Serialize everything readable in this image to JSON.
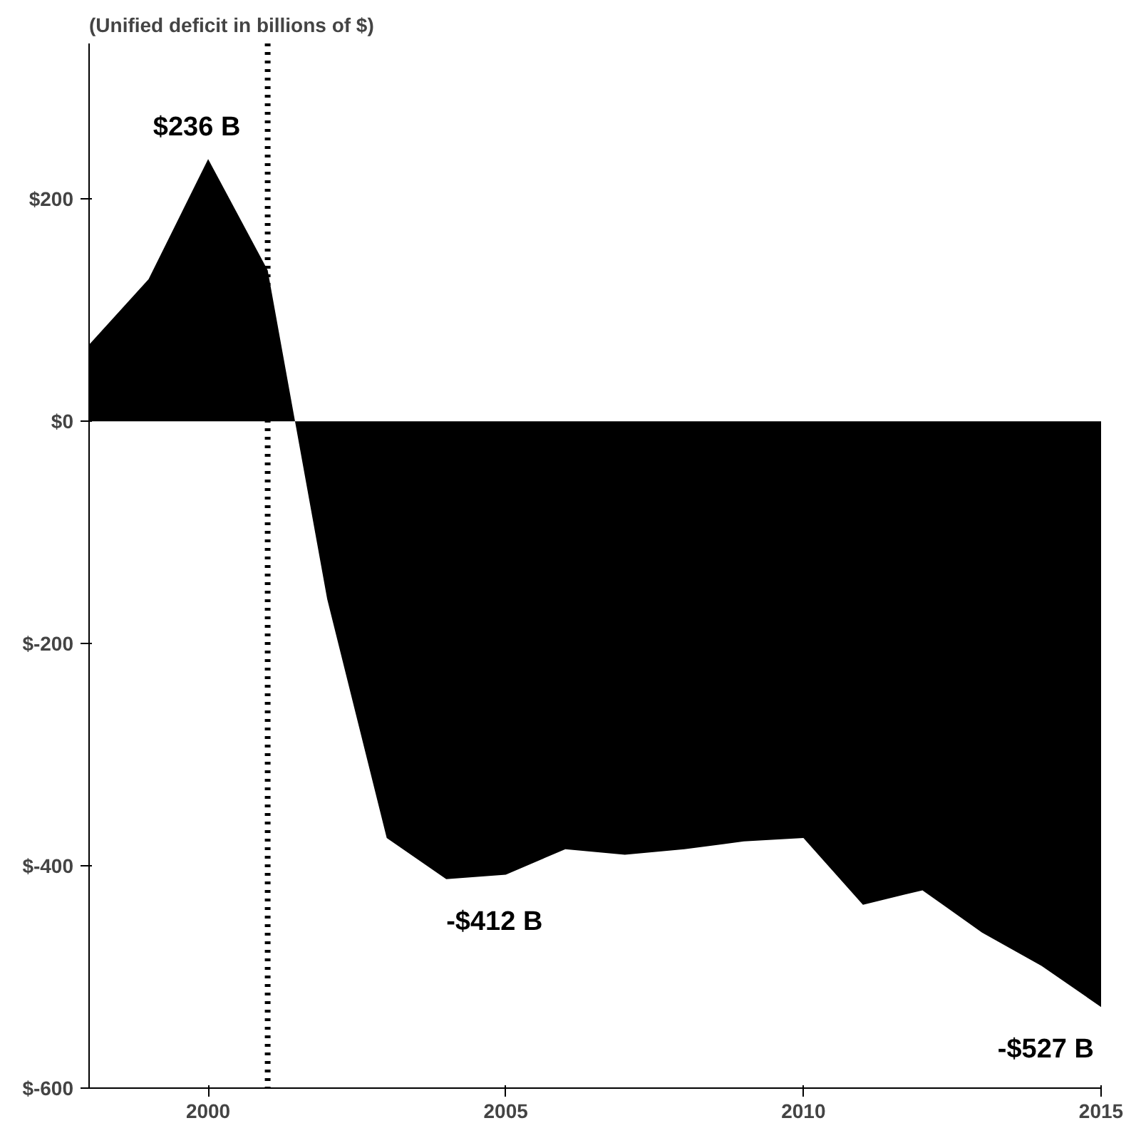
{
  "chart_data": {
    "type": "area",
    "title": "(Unified deficit in billions of $)",
    "x": [
      1998,
      1999,
      2000,
      2001,
      2002,
      2003,
      2004,
      2005,
      2006,
      2007,
      2008,
      2009,
      2010,
      2011,
      2012,
      2013,
      2014,
      2015
    ],
    "series": [
      {
        "color": "#000000",
        "values": [
          69,
          128,
          236,
          136,
          -160,
          -375,
          -412,
          -408,
          -385,
          -390,
          -385,
          -378,
          -375,
          -435,
          -422,
          -460,
          -490,
          -527
        ]
      }
    ],
    "xlim": [
      1998,
      2015
    ],
    "xticks": [
      2000,
      2005,
      2010,
      2015
    ],
    "ylim": [
      -600,
      340
    ],
    "yticks": [
      {
        "value": 200,
        "label": "$200"
      },
      {
        "value": 0,
        "label": "$0"
      },
      {
        "value": -200,
        "label": "$-200"
      },
      {
        "value": -400,
        "label": "$-400"
      },
      {
        "value": -600,
        "label": "$-600"
      }
    ],
    "grid": false,
    "ref_lines": [
      {
        "axis": "x",
        "value": 2001,
        "line_style": "dotted",
        "color": "#000000"
      }
    ],
    "annotations": [
      {
        "text": "$236 B",
        "x": 2000,
        "y": 236
      },
      {
        "text": "-$412 B",
        "x": 2004,
        "y": -412
      },
      {
        "text": "-$527 B",
        "x": 2015,
        "y": -527
      }
    ]
  }
}
